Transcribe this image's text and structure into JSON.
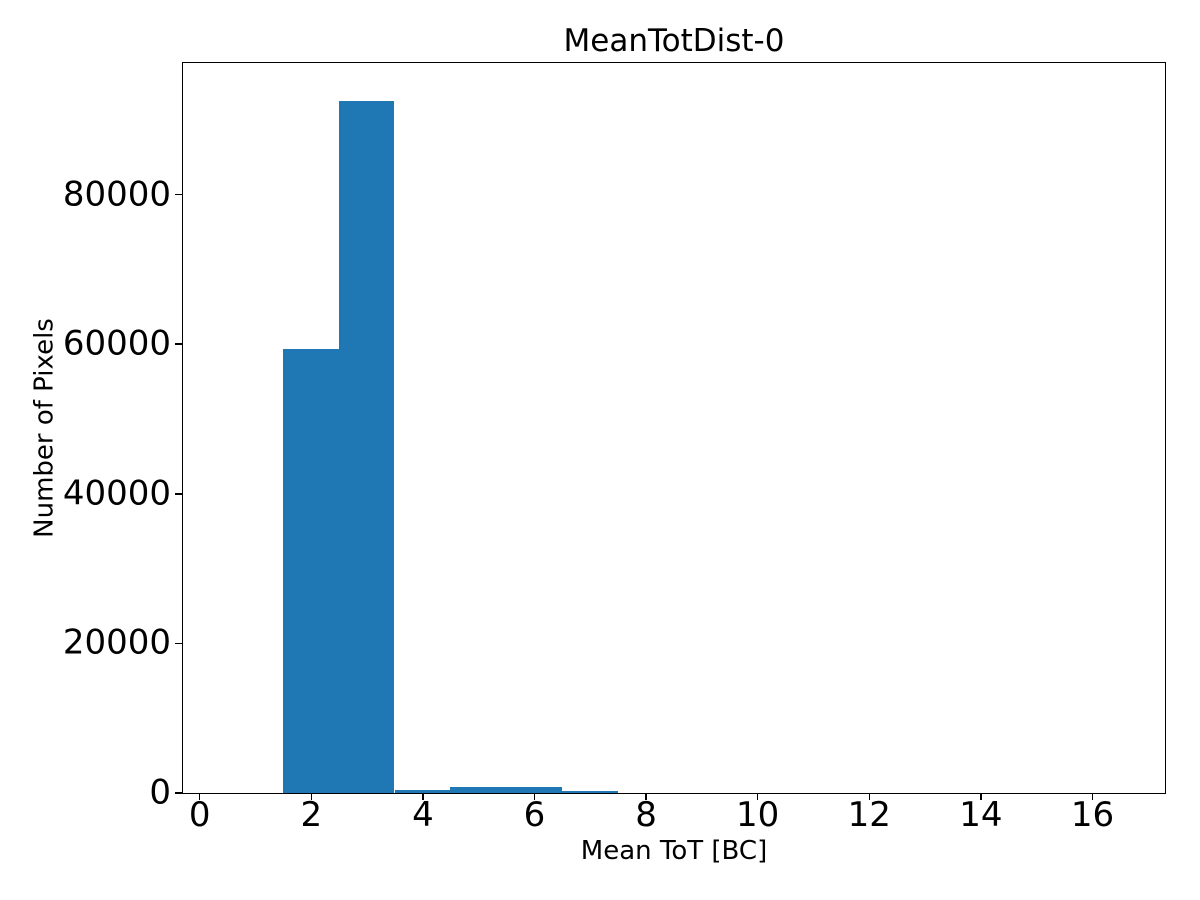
{
  "chart_data": {
    "type": "bar",
    "subtype": "histogram",
    "title": "MeanTotDist-0",
    "xlabel": "Mean ToT [BC]",
    "ylabel": "Number of Pixels",
    "bin_edges": [
      0.5,
      1.5,
      2.5,
      3.5,
      4.5,
      5.5,
      6.5,
      7.5,
      8.5,
      9.5,
      10.5,
      11.5,
      12.5,
      13.5,
      14.5,
      15.5,
      16.5
    ],
    "counts": [
      0,
      59300,
      92400,
      340,
      710,
      710,
      270,
      0,
      0,
      0,
      0,
      0,
      0,
      0,
      0,
      0
    ],
    "xlim": [
      -0.3,
      17.3
    ],
    "ylim": [
      0,
      97600
    ],
    "xticks": [
      0,
      2,
      4,
      6,
      8,
      10,
      12,
      14,
      16
    ],
    "xtick_labels": [
      "0",
      "2",
      "4",
      "6",
      "8",
      "10",
      "12",
      "14",
      "16"
    ],
    "yticks": [
      0,
      20000,
      40000,
      60000,
      80000
    ],
    "ytick_labels": [
      "0",
      "20000",
      "40000",
      "60000",
      "80000"
    ],
    "bar_color": "#1f77b4",
    "axis_color": "#000000",
    "background_color": "#ffffff",
    "grid": false,
    "legend": null
  }
}
